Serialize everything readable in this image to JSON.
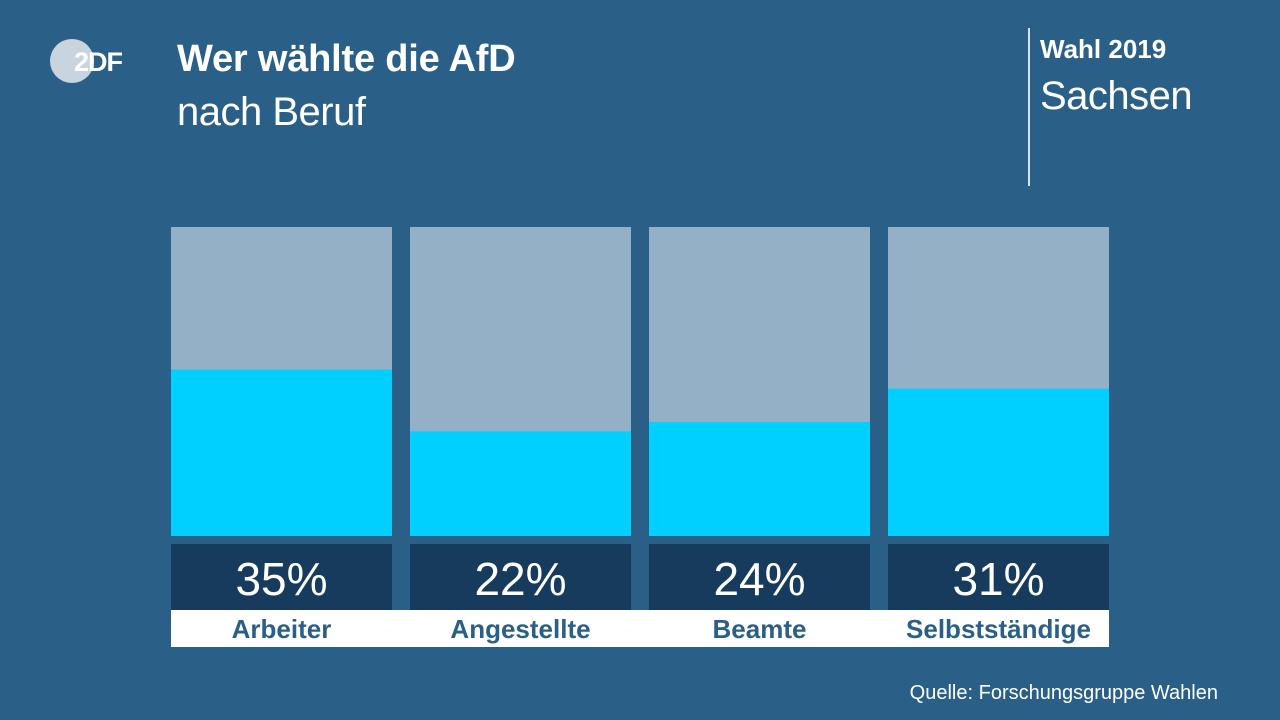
{
  "header": {
    "logo_text": "2DF",
    "title": "Wer wählte die AfD",
    "subtitle": "nach Beruf"
  },
  "badge": {
    "election": "Wahl 2019",
    "region": "Sachsen"
  },
  "source": "Quelle: Forschungsgruppe Wahlen",
  "colors": {
    "background": "#2a5f88",
    "bar_value": "#00d0ff",
    "bar_remainder": "#93b0c7",
    "value_box": "#173b5c",
    "label_box": "#ffffff",
    "label_text": "#2a5f88"
  },
  "chart_data": {
    "type": "bar",
    "categories": [
      "Arbeiter",
      "Angestellte",
      "Beamte",
      "Selbstständige"
    ],
    "values": [
      35,
      22,
      24,
      31
    ],
    "value_labels": [
      "35%",
      "22%",
      "24%",
      "31%"
    ],
    "ylim": [
      0,
      65
    ],
    "grid": false,
    "legend": "none"
  }
}
